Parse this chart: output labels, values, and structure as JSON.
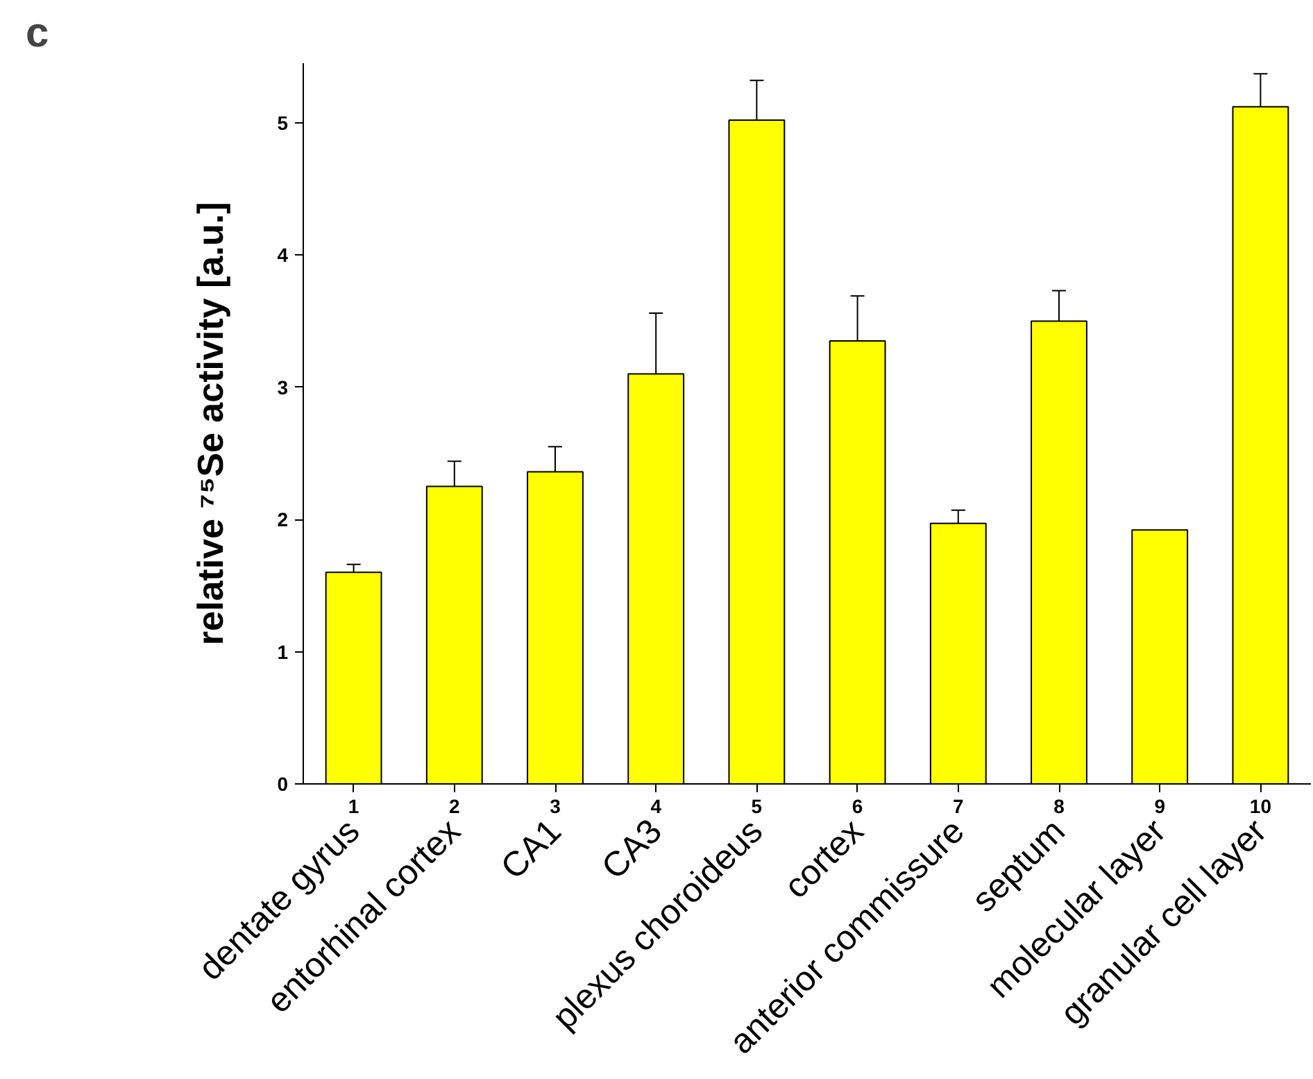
{
  "chart_data": {
    "type": "bar",
    "x": [
      1,
      2,
      3,
      4,
      5,
      6,
      7,
      8,
      9,
      10
    ],
    "values": [
      1.6,
      2.25,
      2.36,
      3.1,
      5.02,
      3.35,
      1.97,
      3.5,
      1.92,
      5.12
    ],
    "errors": [
      [
        1.6,
        1.66
      ],
      [
        2.25,
        2.44
      ],
      [
        2.36,
        2.55
      ],
      [
        3.1,
        3.56
      ],
      [
        5.02,
        5.32
      ],
      [
        3.35,
        3.69
      ],
      [
        1.97,
        2.07
      ],
      [
        3.5,
        3.73
      ],
      null,
      [
        5.12,
        5.37
      ]
    ],
    "color": "#ffff00",
    "ylabel": "relative ⁷⁵Se activity [a.u.]",
    "xlim": [
      0.5,
      10.5
    ],
    "xticks": [
      1,
      2,
      3,
      4,
      5,
      6,
      7,
      8,
      9,
      10
    ],
    "ylim": [
      0,
      5.45
    ],
    "yticks": [
      0,
      1,
      2,
      3,
      4,
      5
    ],
    "annotations": [
      "c",
      "dentate gyrus",
      "entorhinal cortex",
      "CA1",
      "CA3",
      "plexus choroideus",
      "cortex",
      "anterior commissure",
      "septum",
      "molecular layer",
      "granular cell layer"
    ],
    "grid": false
  }
}
